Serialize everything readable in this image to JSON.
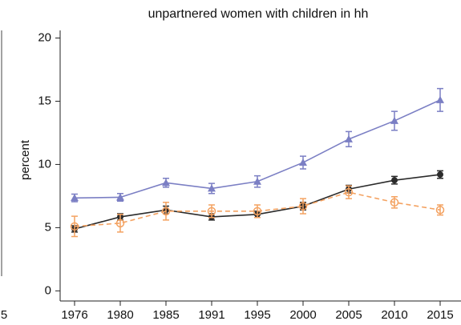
{
  "chart_data": {
    "type": "line",
    "title": "unpartnered women with children in hh",
    "ylabel": "percent",
    "categories": [
      "1976",
      "1980",
      "1985",
      "1991",
      "1995",
      "2000",
      "2005",
      "2010",
      "2015"
    ],
    "ylim": [
      -0.8,
      20.6
    ],
    "yticks": [
      0,
      5,
      10,
      15,
      20
    ],
    "grid": false,
    "series": [
      {
        "color": "#7b7fc4",
        "marker": "triangle",
        "dash": false,
        "values": [
          7.35,
          7.4,
          8.55,
          8.1,
          8.65,
          10.15,
          12.0,
          13.45,
          15.1
        ],
        "errors": [
          0.3,
          0.3,
          0.35,
          0.4,
          0.45,
          0.5,
          0.6,
          0.75,
          0.9
        ]
      },
      {
        "color": "#2b2b2b",
        "marker": "dot",
        "dash": false,
        "values": [
          4.9,
          5.85,
          6.4,
          5.85,
          6.05,
          6.7,
          8.05,
          8.75,
          9.2
        ],
        "errors": [
          0.25,
          0.25,
          0.3,
          0.25,
          0.25,
          0.3,
          0.3,
          0.3,
          0.3
        ]
      },
      {
        "color": "#f4a261",
        "marker": "circle",
        "dash": true,
        "values": [
          5.1,
          5.35,
          6.3,
          6.3,
          6.3,
          6.7,
          7.8,
          7.0,
          6.4
        ],
        "errors": [
          0.8,
          0.7,
          0.7,
          0.5,
          0.5,
          0.6,
          0.5,
          0.45,
          0.4
        ]
      }
    ]
  },
  "left_panel_fragment": "5"
}
